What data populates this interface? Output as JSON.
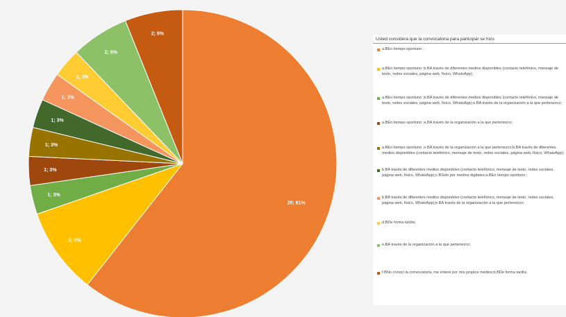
{
  "chart_data": {
    "type": "pie",
    "title": "Usted considera que la convocatoria para participar se hizo",
    "slices": [
      {
        "label": "a.BEn tiempo oportuno ;",
        "value": 20,
        "data_label": "20; 61%",
        "color": "#ed7d31"
      },
      {
        "label": "a.BEn tiempo oportuno ;b.BA través de diferentes medios disponibles (contacto telefónico, mensaje de texto, redes sociales, página web, físico, WhatsApp);",
        "value": 3,
        "data_label": "3; 9%",
        "color": "#ffc000"
      },
      {
        "label": "a.BEn tiempo oportuno ;b.BA través de diferentes medios disponibles (contacto telefónico, mensaje de texto, redes sociales, página web, físico, WhatsApp);e.BA través de la organización a la que pertenezco;",
        "value": 1,
        "data_label": "1; 3%",
        "color": "#70ad47"
      },
      {
        "label": "a.BEn tiempo oportuno ;e.BA través de la organización a la que pertenezco;",
        "value": 1,
        "data_label": "1; 3%",
        "color": "#9e480e"
      },
      {
        "label": "a.BEn tiempo oportuno ;e.BA través de la organización a la que pertenezco;b.BA través de diferentes medios disponibles (contacto telefónico, mensaje de texto, redes sociales, página web, físico, WhatsApp);",
        "value": 1,
        "data_label": "1; 3%",
        "color": "#997300"
      },
      {
        "label": "b.BA través de diferentes medios disponibles (contacto telefónico, mensaje de texto, redes sociales, página web, físico, WhatsApp);c.BSolo por medios digitales;a.BEn tiempo oportuno ;",
        "value": 1,
        "data_label": "1; 3%",
        "color": "#43682b"
      },
      {
        "label": "b.BA través de diferentes medios disponibles (contacto telefónico, mensaje de texto, redes sociales, página web, físico, WhatsApp);e.BA través de la organización a la que pertenezco;",
        "value": 1,
        "data_label": "1; 3%",
        "color": "#f4955e"
      },
      {
        "label": "d.BDe forma tardía;",
        "value": 1,
        "data_label": "1; 3%",
        "color": "#ffcd33"
      },
      {
        "label": "e.BA través de la organización a la que pertenezco;",
        "value": 2,
        "data_label": "2; 6%",
        "color": "#8cc168"
      },
      {
        "label": "f.BNo conocí la convocatoria, me enteré por mis propios medios;d.BDe forma tardía;",
        "value": 2,
        "data_label": "2; 6%",
        "color": "#c55a11"
      }
    ]
  }
}
